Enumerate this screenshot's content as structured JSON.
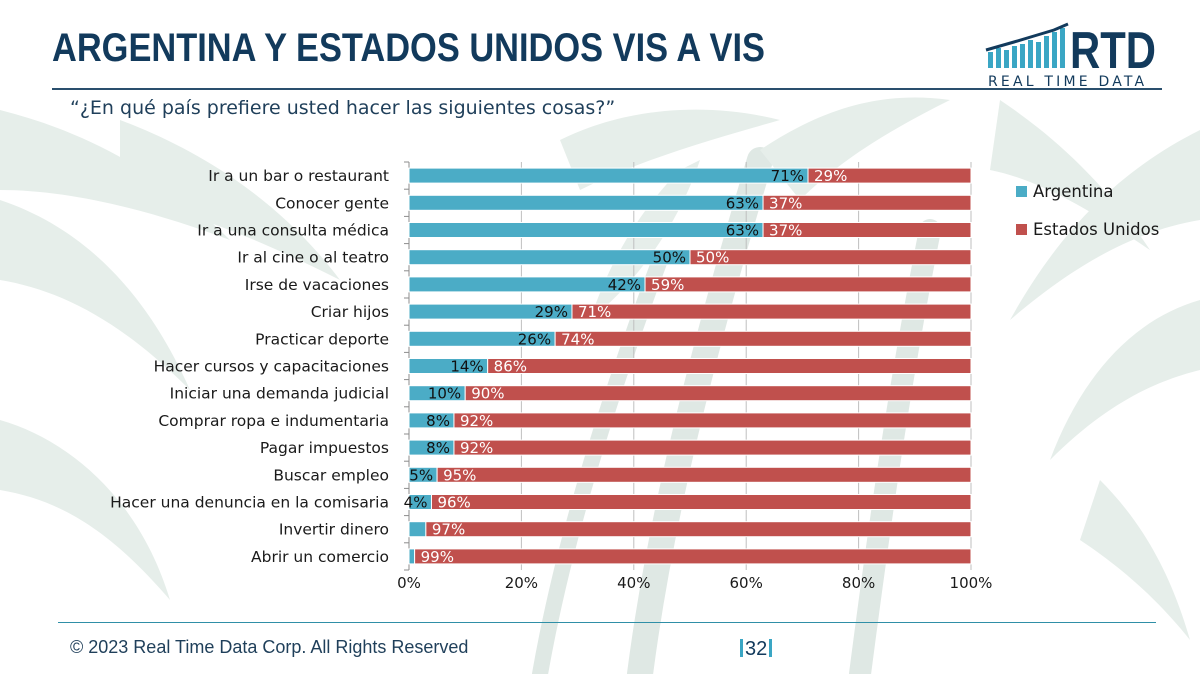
{
  "header": {
    "title": "ARGENTINA Y ESTADOS UNIDOS VIS A VIS",
    "subtitle": "“¿En qué país prefiere usted hacer las siguientes cosas?”"
  },
  "logo": {
    "mark": "RTD",
    "tagline": "REAL TIME DATA"
  },
  "footer": {
    "copyright": "© 2023 Real Time Data Corp. All Rights Reserved",
    "page_number": "32"
  },
  "colors": {
    "argentina": "#4bacc6",
    "estados_unidos": "#c0504d",
    "title": "#123a5c"
  },
  "chart_data": {
    "type": "bar",
    "orientation": "horizontal",
    "stacked": true,
    "categories": [
      "Ir a un bar o restaurant",
      "Conocer gente",
      "Ir a una consulta médica",
      "Ir al cine o al teatro",
      "Irse de vacaciones",
      "Criar hijos",
      "Practicar deporte",
      "Hacer cursos y capacitaciones",
      "Iniciar una demanda judicial",
      "Comprar ropa e indumentaria",
      "Pagar impuestos",
      "Buscar empleo",
      "Hacer una denuncia en la comisaria",
      "Invertir dinero",
      "Abrir un comercio"
    ],
    "series": [
      {
        "name": "Argentina",
        "values": [
          71,
          63,
          63,
          50,
          42,
          29,
          26,
          14,
          10,
          8,
          8,
          5,
          4,
          3,
          1
        ],
        "labels": [
          "71%",
          "63%",
          "63%",
          "50%",
          "42%",
          "29%",
          "26%",
          "14%",
          "10%",
          "8%",
          "8%",
          "5%",
          "4%",
          "",
          ""
        ]
      },
      {
        "name": "Estados Unidos",
        "values": [
          29,
          37,
          37,
          50,
          59,
          71,
          74,
          86,
          90,
          92,
          92,
          95,
          96,
          97,
          99
        ],
        "labels": [
          "29%",
          "37%",
          "37%",
          "50%",
          "59%",
          "71%",
          "74%",
          "86%",
          "90%",
          "92%",
          "92%",
          "95%",
          "96%",
          "97%",
          "99%"
        ]
      }
    ],
    "xlim": [
      0,
      100
    ],
    "xticks": [
      "0%",
      "20%",
      "40%",
      "60%",
      "80%",
      "100%"
    ],
    "grid": "vertical",
    "legend_position": "right"
  }
}
